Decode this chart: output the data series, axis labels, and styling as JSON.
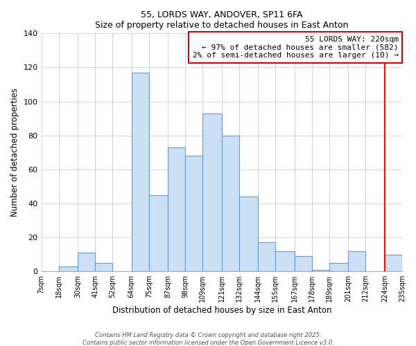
{
  "title": "55, LORDS WAY, ANDOVER, SP11 6FA",
  "subtitle": "Size of property relative to detached houses in East Anton",
  "xlabel": "Distribution of detached houses by size in East Anton",
  "ylabel": "Number of detached properties",
  "bin_labels": [
    "7sqm",
    "18sqm",
    "30sqm",
    "41sqm",
    "52sqm",
    "64sqm",
    "75sqm",
    "87sqm",
    "98sqm",
    "109sqm",
    "121sqm",
    "132sqm",
    "144sqm",
    "155sqm",
    "167sqm",
    "178sqm",
    "189sqm",
    "201sqm",
    "212sqm",
    "224sqm",
    "235sqm"
  ],
  "bar_heights": [
    0,
    3,
    11,
    5,
    0,
    117,
    45,
    73,
    68,
    93,
    80,
    44,
    17,
    12,
    9,
    1,
    5,
    12,
    0,
    10
  ],
  "bar_color": "#cce0f5",
  "bar_edge_color": "#6699cc",
  "ylim": [
    0,
    140
  ],
  "yticks": [
    0,
    20,
    40,
    60,
    80,
    100,
    120,
    140
  ],
  "property_line_x": 224,
  "property_line_label": "55 LORDS WAY: 220sqm",
  "legend_line2": "← 97% of detached houses are smaller (582)",
  "legend_line3": "2% of semi-detached houses are larger (10) →",
  "legend_box_facecolor": "#ffffff",
  "legend_box_edge": "#cc0000",
  "footnote1": "Contains HM Land Registry data © Crown copyright and database right 2025.",
  "footnote2": "Contains public sector information licensed under the Open Government Licence v3.0."
}
